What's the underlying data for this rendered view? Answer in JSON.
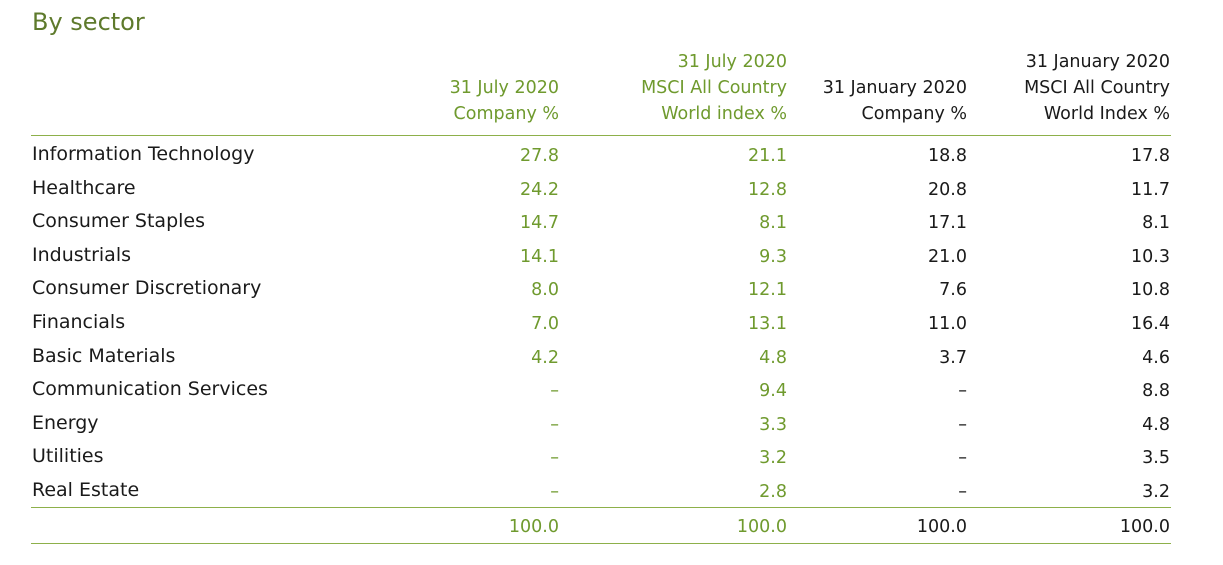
{
  "title": "By sector",
  "columns": [
    {
      "lines": [
        "31 July 2020",
        "Company %"
      ],
      "accent": "green"
    },
    {
      "lines": [
        "31 July 2020",
        "MSCI All Country",
        "World index %"
      ],
      "accent": "green"
    },
    {
      "lines": [
        "31 January 2020",
        "Company %"
      ],
      "accent": "dark"
    },
    {
      "lines": [
        "31 January 2020",
        "MSCI All Country",
        "World Index %"
      ],
      "accent": "dark"
    }
  ],
  "rows": [
    {
      "sector": "Information Technology",
      "values": [
        "27.8",
        "21.1",
        "18.8",
        "17.8"
      ]
    },
    {
      "sector": "Healthcare",
      "values": [
        "24.2",
        "12.8",
        "20.8",
        "11.7"
      ]
    },
    {
      "sector": "Consumer Staples",
      "values": [
        "14.7",
        "8.1",
        "17.1",
        "8.1"
      ]
    },
    {
      "sector": "Industrials",
      "values": [
        "14.1",
        "9.3",
        "21.0",
        "10.3"
      ]
    },
    {
      "sector": "Consumer Discretionary",
      "values": [
        "8.0",
        "12.1",
        "7.6",
        "10.8"
      ]
    },
    {
      "sector": "Financials",
      "values": [
        "7.0",
        "13.1",
        "11.0",
        "16.4"
      ]
    },
    {
      "sector": "Basic Materials",
      "values": [
        "4.2",
        "4.8",
        "3.7",
        "4.6"
      ]
    },
    {
      "sector": "Communication Services",
      "values": [
        "–",
        "9.4",
        "–",
        "8.8"
      ]
    },
    {
      "sector": "Energy",
      "values": [
        "–",
        "3.3",
        "–",
        "4.8"
      ]
    },
    {
      "sector": "Utilities",
      "values": [
        "–",
        "3.2",
        "–",
        "3.5"
      ]
    },
    {
      "sector": "Real Estate",
      "values": [
        "–",
        "2.8",
        "–",
        "3.2"
      ]
    }
  ],
  "totals": [
    "100.0",
    "100.0",
    "100.0",
    "100.0"
  ],
  "colors": {
    "accent_green": "#6f9a2e",
    "title_green": "#5e7a2c",
    "rule_green": "#8db04a",
    "text_dark": "#1a1a1a"
  }
}
